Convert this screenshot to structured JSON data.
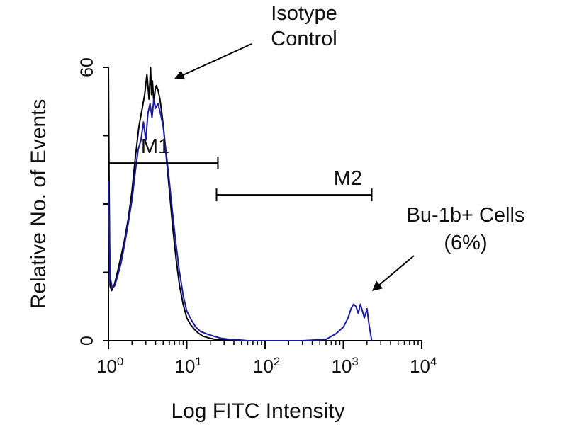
{
  "chart_data": {
    "type": "line",
    "xlabel": "Log FITC Intensity",
    "ylabel": "Relative No. of Events",
    "x_scale": "log",
    "xlim": [
      1,
      10000
    ],
    "ylim": [
      0,
      60
    ],
    "x_ticks": [
      {
        "value": 1,
        "base": "10",
        "exp": "0"
      },
      {
        "value": 10,
        "base": "10",
        "exp": "1"
      },
      {
        "value": 100,
        "base": "10",
        "exp": "2"
      },
      {
        "value": 1000,
        "base": "10",
        "exp": "3"
      },
      {
        "value": 10000,
        "base": "10",
        "exp": "4"
      }
    ],
    "y_ticks": [
      {
        "value": 0,
        "label": "0"
      },
      {
        "value": 60,
        "label": "60"
      }
    ],
    "grid": false,
    "colors": {
      "control": "#000000",
      "stained": "#1a1aa6",
      "axis": "#000000"
    },
    "series": [
      {
        "key": "control",
        "x": [
          1.0,
          1.02,
          1.05,
          1.1,
          1.2,
          1.3,
          1.45,
          1.6,
          1.8,
          2.0,
          2.2,
          2.45,
          2.7,
          2.9,
          3.1,
          3.3,
          3.45,
          3.55,
          3.65,
          3.8,
          3.95,
          4.1,
          4.3,
          4.55,
          4.8,
          5.1,
          5.5,
          6.0,
          6.6,
          7.3,
          8.1,
          9.0,
          10.0,
          11.2,
          12.5,
          14.0,
          16.0,
          19.0,
          23.0,
          28.0,
          35.0,
          45.0
        ],
        "y": [
          60.0,
          33.0,
          12.0,
          11.0,
          12.5,
          15.0,
          18.5,
          22.0,
          27.0,
          33.0,
          40.0,
          47.0,
          51.0,
          54.0,
          58.5,
          53.0,
          60.0,
          54.0,
          57.0,
          52.0,
          55.0,
          56.0,
          55.0,
          53.0,
          50.0,
          46.0,
          40.0,
          33.0,
          25.0,
          18.0,
          12.0,
          8.0,
          5.0,
          3.5,
          2.5,
          1.7,
          1.0,
          0.6,
          0.3,
          0.2,
          0.1,
          0.0
        ]
      },
      {
        "key": "stained",
        "x": [
          1.0,
          1.05,
          1.12,
          1.2,
          1.3,
          1.45,
          1.6,
          1.8,
          2.0,
          2.2,
          2.4,
          2.6,
          2.8,
          3.0,
          3.2,
          3.4,
          3.6,
          3.8,
          4.0,
          4.3,
          4.6,
          5.0,
          5.4,
          5.9,
          6.5,
          7.2,
          8.0,
          9.0,
          10.0,
          11.5,
          13.0,
          15.0,
          18.0,
          22.0,
          28.0,
          35.0,
          45.0,
          60.0,
          100.0,
          300.0,
          600.0,
          800.0,
          1000.0,
          1150.0,
          1250.0,
          1350.0,
          1450.0,
          1550.0,
          1650.0,
          1750.0,
          1850.0,
          2000.0,
          2150.0,
          2300.0
        ],
        "y": [
          35.0,
          14.0,
          11.5,
          12.0,
          14.0,
          17.0,
          21.0,
          26.0,
          31.0,
          37.0,
          42.0,
          44.0,
          48.0,
          44.0,
          50.0,
          52.0,
          49.0,
          53.0,
          51.0,
          52.0,
          50.0,
          47.0,
          42.0,
          36.0,
          29.0,
          22.0,
          15.5,
          10.0,
          6.5,
          4.5,
          3.0,
          2.0,
          1.5,
          1.0,
          0.5,
          0.3,
          0.2,
          0.0,
          0.0,
          0.0,
          0.3,
          1.5,
          3.0,
          5.0,
          7.0,
          8.0,
          7.5,
          6.0,
          8.0,
          6.5,
          5.0,
          7.0,
          3.0,
          0.0
        ]
      }
    ],
    "markers": [
      {
        "label": "M1",
        "x_start": 1,
        "x_end": 25,
        "y": 39
      },
      {
        "label": "M2",
        "x_start": 24,
        "x_end": 2300,
        "y": 32
      }
    ],
    "annotations": [
      {
        "lines": [
          "Isotype",
          "Control"
        ]
      },
      {
        "lines": [
          "Bu-1b+ Cells",
          "(6%)"
        ]
      }
    ]
  }
}
